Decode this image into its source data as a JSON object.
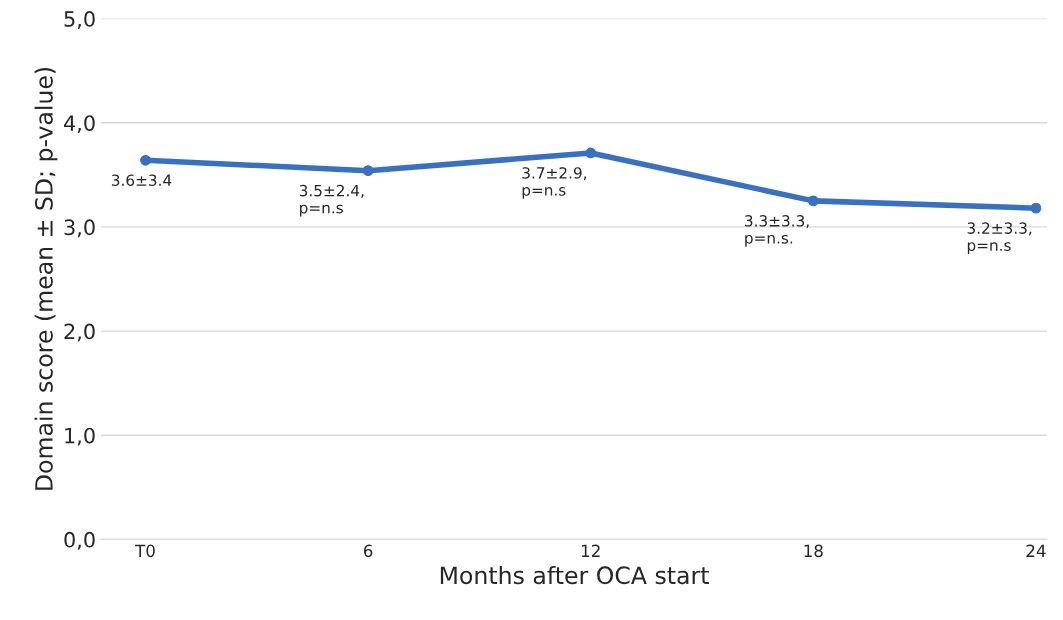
{
  "chart_data": {
    "type": "line",
    "xlabel": "Months after OCA start",
    "ylabel": "Domain score (mean ± SD; p-value)",
    "categories": [
      "T0",
      "6",
      "12",
      "18",
      "24"
    ],
    "series": [
      {
        "color": "#3a70c0",
        "values": [
          3.64,
          3.54,
          3.71,
          3.25,
          3.18
        ]
      }
    ],
    "ylim": [
      0,
      5
    ],
    "yticks": [
      {
        "value": 0,
        "label": "0,0"
      },
      {
        "value": 1,
        "label": "1,0"
      },
      {
        "value": 2,
        "label": "2,0"
      },
      {
        "value": 3,
        "label": "3,0"
      },
      {
        "value": 4,
        "label": "4,0"
      },
      {
        "value": 5,
        "label": "5,0"
      }
    ],
    "grid": "y",
    "marker": "circle",
    "line_style": "solid",
    "annotations": [
      {
        "text": "3.6±3.4",
        "x": "T0",
        "y": 3.64
      },
      {
        "text": "3.5±2.4,\np=n.s",
        "x": "6",
        "y": 3.54
      },
      {
        "text": "3.7±2.9,\np=n.s",
        "x": "12",
        "y": 3.71
      },
      {
        "text": "3.3±3.3,\np=n.s.",
        "x": "18",
        "y": 3.25
      },
      {
        "text": "3.2±3.3,\np=n.s",
        "x": "24",
        "y": 3.18
      }
    ]
  }
}
